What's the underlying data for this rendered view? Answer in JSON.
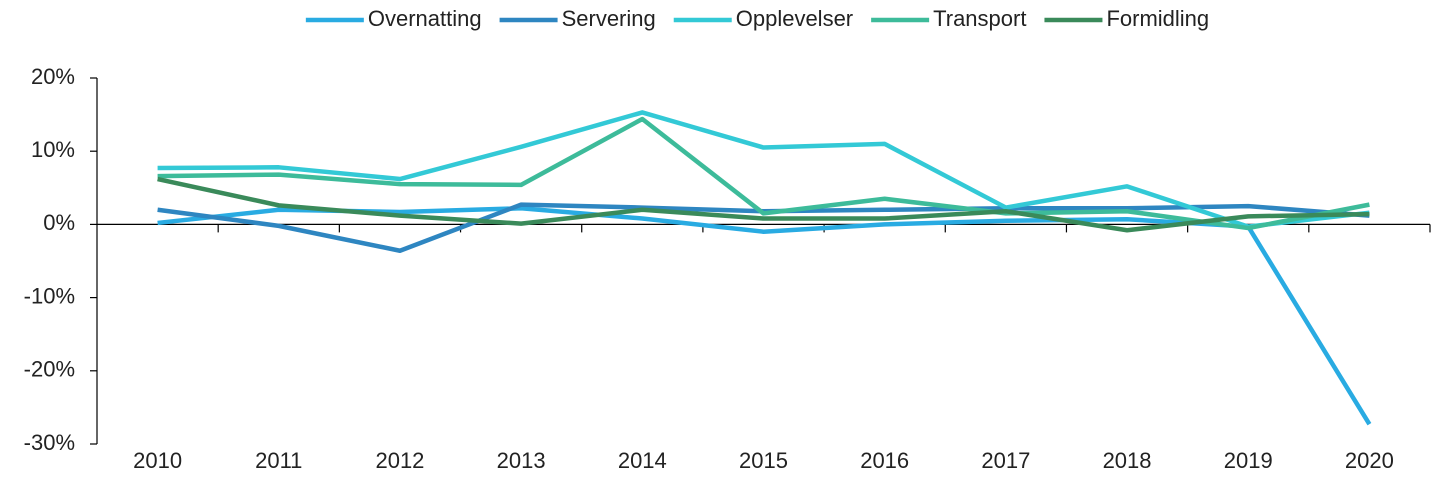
{
  "chart_data": {
    "type": "line",
    "categories": [
      "2010",
      "2011",
      "2012",
      "2013",
      "2014",
      "2015",
      "2016",
      "2017",
      "2018",
      "2019",
      "2020"
    ],
    "series": [
      {
        "name": "Overnatting",
        "color": "#29abe2",
        "values": [
          0.2,
          2.0,
          1.7,
          2.2,
          0.8,
          -1.0,
          0.0,
          0.5,
          0.7,
          -0.3,
          -27.3
        ]
      },
      {
        "name": "Servering",
        "color": "#2e86c1",
        "values": [
          2.0,
          -0.2,
          -3.6,
          2.7,
          2.3,
          1.8,
          2.0,
          2.2,
          2.2,
          2.5,
          1.2
        ]
      },
      {
        "name": "Opplevelser",
        "color": "#33c9d6",
        "values": [
          7.7,
          7.8,
          6.2,
          10.6,
          15.3,
          10.5,
          11.0,
          2.3,
          5.2,
          -0.3,
          1.6
        ]
      },
      {
        "name": "Transport",
        "color": "#3dbb9a",
        "values": [
          6.6,
          6.8,
          5.5,
          5.4,
          14.4,
          1.5,
          3.5,
          1.5,
          1.8,
          -0.5,
          2.7
        ]
      },
      {
        "name": "Formidling",
        "color": "#3a8a5a",
        "values": [
          6.2,
          2.6,
          1.2,
          0.1,
          2.0,
          0.8,
          0.8,
          1.8,
          -0.8,
          1.1,
          1.4
        ]
      }
    ],
    "ylim": [
      -30,
      20
    ],
    "yticks": [
      {
        "value": -30,
        "label": "-30%"
      },
      {
        "value": -20,
        "label": "-20%"
      },
      {
        "value": -10,
        "label": "-10%"
      },
      {
        "value": 0,
        "label": "0%"
      },
      {
        "value": 10,
        "label": "10%"
      },
      {
        "value": 20,
        "label": "20%"
      }
    ],
    "legend": "top"
  }
}
